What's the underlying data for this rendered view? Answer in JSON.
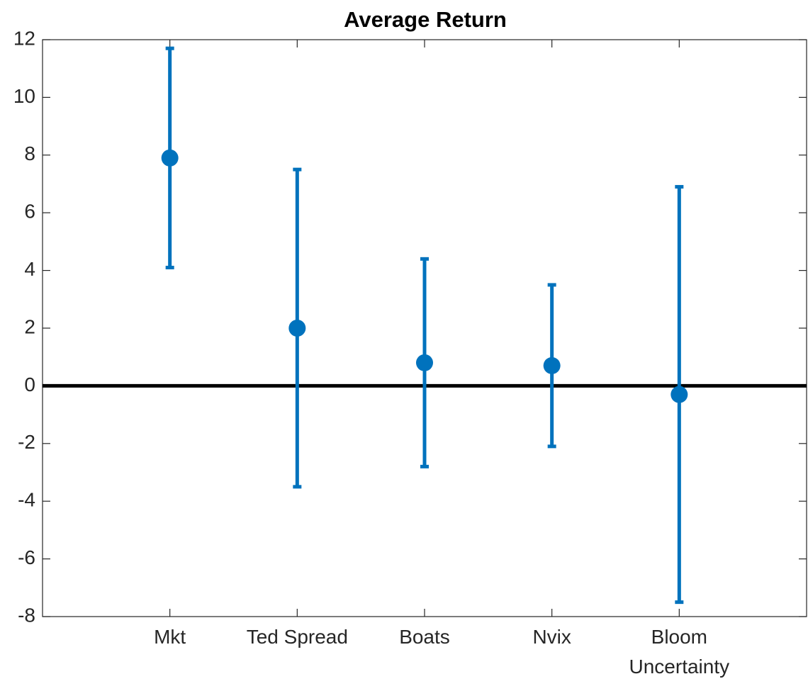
{
  "chart_data": {
    "type": "errorbar",
    "title": "Average Return",
    "categories": [
      "Mkt",
      "Ted Spread",
      "Boats",
      "Nvix",
      "Bloom\nUncertainty"
    ],
    "values": [
      7.9,
      2.0,
      0.8,
      0.7,
      -0.3
    ],
    "errors": [
      3.8,
      5.5,
      3.6,
      2.8,
      7.2
    ],
    "color": "#0072bd",
    "xlim": [
      0,
      6
    ],
    "ylim": [
      -8,
      12
    ],
    "yticks": [
      -8,
      -6,
      -4,
      -2,
      0,
      2,
      4,
      6,
      8,
      10,
      12
    ],
    "hline": 0,
    "grid": false
  }
}
